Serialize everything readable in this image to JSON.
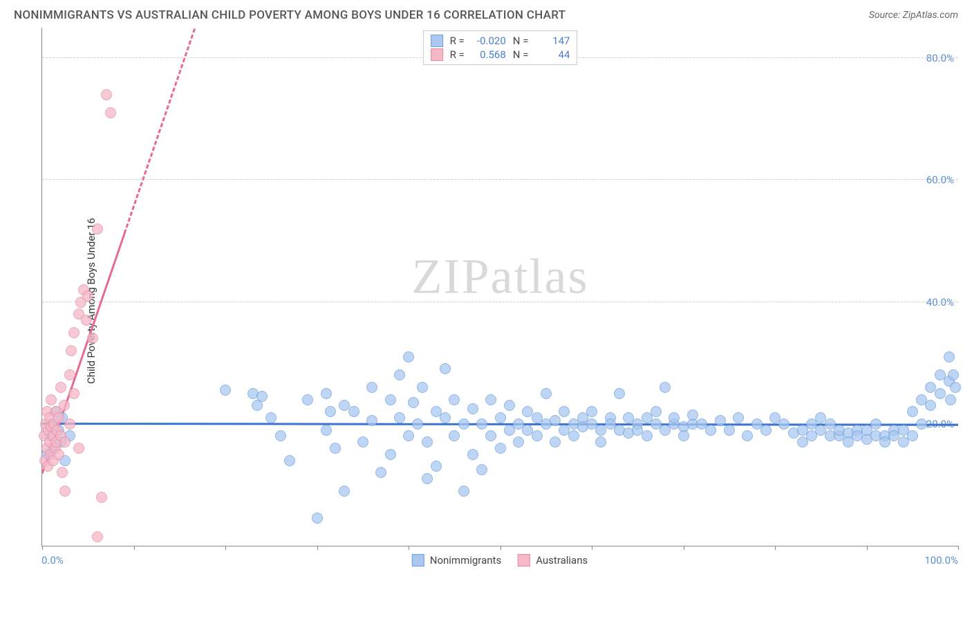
{
  "header": {
    "title": "NONIMMIGRANTS VS AUSTRALIAN CHILD POVERTY AMONG BOYS UNDER 16 CORRELATION CHART",
    "source_prefix": "Source: ",
    "source_name": "ZipAtlas.com"
  },
  "chart": {
    "type": "scatter",
    "y_axis_label": "Child Poverty Among Boys Under 16",
    "xlim": [
      0,
      100
    ],
    "ylim": [
      0,
      85
    ],
    "x_min_label": "0.0%",
    "x_max_label": "100.0%",
    "y_ticks": [
      {
        "v": 20,
        "label": "20.0%"
      },
      {
        "v": 40,
        "label": "40.0%"
      },
      {
        "v": 60,
        "label": "60.0%"
      },
      {
        "v": 80,
        "label": "80.0%"
      }
    ],
    "x_tick_positions": [
      0,
      10,
      20,
      30,
      40,
      50,
      60,
      70,
      80,
      90,
      100
    ],
    "background": "#ffffff",
    "grid_color": "#d0d0d0",
    "axis_color": "#888888",
    "watermark": "ZIPatlas",
    "marker_radius": 8,
    "marker_stroke_width": 1,
    "series": [
      {
        "name": "Nonimmigrants",
        "fill": "#a9c7ef",
        "stroke": "#6f9fe0",
        "fill_opacity": 0.75,
        "trend": {
          "y_at_x0": 20.2,
          "y_at_x100": 20.0,
          "color": "#3b74cf",
          "width": 3,
          "dash": false
        },
        "R": "-0.020",
        "N": "147",
        "points": [
          [
            0.5,
            15
          ],
          [
            0.8,
            18
          ],
          [
            1,
            20
          ],
          [
            1.2,
            16
          ],
          [
            1.5,
            22
          ],
          [
            1.8,
            19
          ],
          [
            2,
            17
          ],
          [
            2.2,
            21
          ],
          [
            2.5,
            14
          ],
          [
            3,
            18
          ],
          [
            20,
            25.5
          ],
          [
            23,
            25
          ],
          [
            23.5,
            23
          ],
          [
            24,
            24.5
          ],
          [
            25,
            21
          ],
          [
            26,
            18
          ],
          [
            27,
            14
          ],
          [
            29,
            24
          ],
          [
            30,
            4.5
          ],
          [
            31,
            25
          ],
          [
            31,
            19
          ],
          [
            31.5,
            22
          ],
          [
            32,
            16
          ],
          [
            33,
            23
          ],
          [
            33,
            9
          ],
          [
            34,
            22
          ],
          [
            35,
            17
          ],
          [
            36,
            26
          ],
          [
            36,
            20.5
          ],
          [
            37,
            12
          ],
          [
            38,
            24
          ],
          [
            38,
            15
          ],
          [
            39,
            21
          ],
          [
            39,
            28
          ],
          [
            40,
            31
          ],
          [
            40,
            18
          ],
          [
            40.5,
            23.5
          ],
          [
            41,
            20
          ],
          [
            41.5,
            26
          ],
          [
            42,
            11
          ],
          [
            42,
            17
          ],
          [
            43,
            22
          ],
          [
            43,
            13
          ],
          [
            44,
            21
          ],
          [
            44,
            29
          ],
          [
            45,
            18
          ],
          [
            45,
            24
          ],
          [
            46,
            9
          ],
          [
            46,
            20
          ],
          [
            47,
            22.5
          ],
          [
            47,
            15
          ],
          [
            48,
            12.5
          ],
          [
            48,
            20
          ],
          [
            49,
            18
          ],
          [
            49,
            24
          ],
          [
            50,
            21
          ],
          [
            50,
            16
          ],
          [
            51,
            19
          ],
          [
            51,
            23
          ],
          [
            52,
            20
          ],
          [
            52,
            17
          ],
          [
            53,
            22
          ],
          [
            53,
            19
          ],
          [
            54,
            18
          ],
          [
            54,
            21
          ],
          [
            55,
            25
          ],
          [
            55,
            20
          ],
          [
            56,
            20.5
          ],
          [
            56,
            17
          ],
          [
            57,
            22
          ],
          [
            57,
            19
          ],
          [
            58,
            20
          ],
          [
            58,
            18
          ],
          [
            59,
            21
          ],
          [
            59,
            19.5
          ],
          [
            60,
            20
          ],
          [
            60,
            22
          ],
          [
            61,
            19
          ],
          [
            61,
            17
          ],
          [
            62,
            21
          ],
          [
            62,
            20
          ],
          [
            63,
            19
          ],
          [
            63,
            25
          ],
          [
            64,
            18.5
          ],
          [
            64,
            21
          ],
          [
            65,
            20
          ],
          [
            65,
            19
          ],
          [
            66,
            21
          ],
          [
            66,
            18
          ],
          [
            67,
            20
          ],
          [
            67,
            22
          ],
          [
            68,
            26
          ],
          [
            68,
            19
          ],
          [
            69,
            20
          ],
          [
            69,
            21
          ],
          [
            70,
            19.5
          ],
          [
            70,
            18
          ],
          [
            71,
            20
          ],
          [
            71,
            21.5
          ],
          [
            72,
            20
          ],
          [
            73,
            19
          ],
          [
            74,
            20.5
          ],
          [
            75,
            19
          ],
          [
            76,
            21
          ],
          [
            77,
            18
          ],
          [
            78,
            20
          ],
          [
            79,
            19
          ],
          [
            80,
            21
          ],
          [
            81,
            20
          ],
          [
            82,
            18.5
          ],
          [
            83,
            19
          ],
          [
            83,
            17
          ],
          [
            84,
            20
          ],
          [
            84,
            18
          ],
          [
            85,
            19
          ],
          [
            85,
            21
          ],
          [
            86,
            18
          ],
          [
            86,
            20
          ],
          [
            87,
            18
          ],
          [
            87,
            19
          ],
          [
            88,
            18.5
          ],
          [
            88,
            17
          ],
          [
            89,
            19
          ],
          [
            89,
            18
          ],
          [
            90,
            17.5
          ],
          [
            90,
            19
          ],
          [
            91,
            18
          ],
          [
            91,
            20
          ],
          [
            92,
            18
          ],
          [
            92,
            17
          ],
          [
            93,
            19
          ],
          [
            93,
            18
          ],
          [
            94,
            17
          ],
          [
            94,
            19
          ],
          [
            95,
            18
          ],
          [
            95,
            22
          ],
          [
            96,
            20
          ],
          [
            96,
            24
          ],
          [
            97,
            23
          ],
          [
            97,
            26
          ],
          [
            98,
            25
          ],
          [
            98,
            28
          ],
          [
            99,
            27
          ],
          [
            99,
            31
          ],
          [
            99.2,
            24
          ],
          [
            99.5,
            28
          ],
          [
            99.7,
            26
          ]
        ]
      },
      {
        "name": "Australians",
        "fill": "#f4b8c7",
        "stroke": "#e88aa5",
        "fill_opacity": 0.75,
        "trend": {
          "y_at_x0": 12,
          "y_at_x100": 450,
          "solid_until_x": 9,
          "color": "#e76a92",
          "width": 3,
          "dash": true
        },
        "R": "0.568",
        "N": "44",
        "points": [
          [
            0.2,
            18
          ],
          [
            0.3,
            14
          ],
          [
            0.4,
            20
          ],
          [
            0.5,
            16
          ],
          [
            0.5,
            22
          ],
          [
            0.6,
            13
          ],
          [
            0.7,
            19
          ],
          [
            0.8,
            17
          ],
          [
            0.8,
            21
          ],
          [
            0.9,
            15
          ],
          [
            1,
            19.5
          ],
          [
            1,
            24
          ],
          [
            1.2,
            18
          ],
          [
            1.2,
            14
          ],
          [
            1.3,
            20
          ],
          [
            1.4,
            16
          ],
          [
            1.5,
            22
          ],
          [
            1.5,
            17
          ],
          [
            1.6,
            19
          ],
          [
            1.8,
            15
          ],
          [
            1.8,
            21
          ],
          [
            2,
            18
          ],
          [
            2,
            26
          ],
          [
            2.2,
            12
          ],
          [
            2.4,
            23
          ],
          [
            2.5,
            9
          ],
          [
            2.5,
            17
          ],
          [
            3,
            20
          ],
          [
            3,
            28
          ],
          [
            3.2,
            32
          ],
          [
            3.5,
            25
          ],
          [
            3.5,
            35
          ],
          [
            4,
            38
          ],
          [
            4,
            16
          ],
          [
            4.2,
            40
          ],
          [
            4.5,
            42
          ],
          [
            4.8,
            37
          ],
          [
            5,
            41
          ],
          [
            5.5,
            34
          ],
          [
            6,
            52
          ],
          [
            6,
            1.5
          ],
          [
            6.5,
            8
          ],
          [
            7,
            74
          ],
          [
            7.5,
            71
          ]
        ]
      }
    ],
    "top_legend": {
      "R_label": "R =",
      "N_label": "N ="
    },
    "bottom_legend": {
      "items": [
        "Nonimmigrants",
        "Australians"
      ]
    }
  }
}
